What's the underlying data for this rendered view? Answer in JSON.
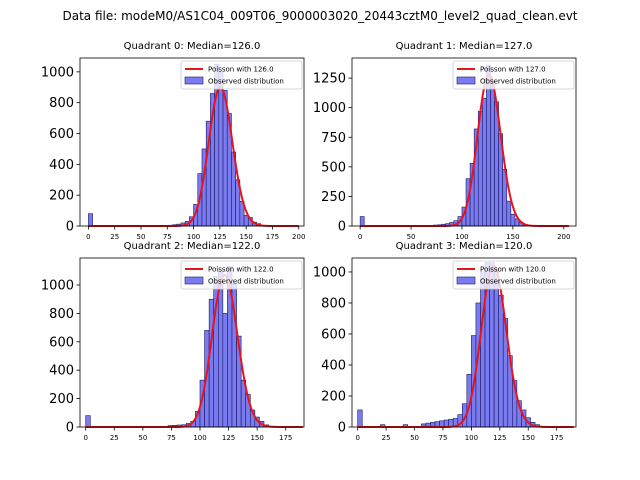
{
  "figure": {
    "suptitle": "Data file: modeM0/AS1C04_009T06_9000003020_20443cztM0_level2_quad_clean.evt"
  },
  "colors": {
    "bar_fill": "#7b7bf0",
    "bar_edge": "#1a1a66",
    "curve": "#e8141b"
  },
  "chart_data": [
    {
      "type": "bar",
      "title": "Quadrant 0: Median=126.0",
      "xlim": [
        -8,
        205
      ],
      "ylim": [
        0,
        1090
      ],
      "xticks": [
        0,
        25,
        50,
        75,
        100,
        125,
        150,
        175,
        200
      ],
      "yticks": [
        0,
        200,
        400,
        600,
        800,
        1000
      ],
      "bin_width": 4,
      "bins": [
        0,
        76,
        80,
        84,
        88,
        92,
        96,
        100,
        104,
        108,
        112,
        116,
        120,
        124,
        128,
        132,
        136,
        140,
        144,
        148,
        152,
        156,
        160,
        164
      ],
      "counts": [
        80,
        5,
        8,
        12,
        20,
        30,
        60,
        140,
        340,
        500,
        680,
        860,
        1050,
        1000,
        880,
        730,
        480,
        300,
        160,
        70,
        55,
        25,
        15,
        5
      ],
      "curve": {
        "type": "poisson",
        "mean": 126.0,
        "peak": 900,
        "x_range": [
          0,
          200
        ]
      },
      "legend": [
        "Poisson with 126.0",
        "Observed distribution"
      ]
    },
    {
      "type": "bar",
      "title": "Quadrant 1: Median=127.0",
      "xlim": [
        -8,
        212
      ],
      "ylim": [
        0,
        1420
      ],
      "xticks": [
        0,
        50,
        100,
        150,
        200
      ],
      "yticks": [
        0,
        250,
        500,
        750,
        1000,
        1250
      ],
      "bin_width": 4,
      "bins": [
        0,
        72,
        76,
        80,
        84,
        88,
        92,
        96,
        100,
        104,
        108,
        112,
        116,
        120,
        124,
        128,
        132,
        136,
        140,
        144,
        148,
        152,
        156,
        160
      ],
      "counts": [
        80,
        8,
        10,
        15,
        20,
        30,
        45,
        80,
        160,
        400,
        530,
        820,
        970,
        1080,
        1360,
        1230,
        1050,
        780,
        480,
        210,
        100,
        60,
        30,
        10
      ],
      "curve": {
        "type": "poisson",
        "mean": 127.0,
        "peak": 1280,
        "x_range": [
          0,
          205
        ]
      },
      "legend": [
        "Poisson with 127.0",
        "Observed distribution"
      ]
    },
    {
      "type": "bar",
      "title": "Quadrant 2: Median=122.0",
      "xlim": [
        -5,
        191
      ],
      "ylim": [
        0,
        1190
      ],
      "xticks": [
        0,
        25,
        50,
        75,
        100,
        125,
        150,
        175
      ],
      "yticks": [
        0,
        200,
        400,
        600,
        800,
        1000
      ],
      "bin_width": 4,
      "bins": [
        0,
        72,
        76,
        80,
        84,
        88,
        92,
        96,
        100,
        104,
        108,
        112,
        116,
        120,
        124,
        128,
        132,
        136,
        140,
        144,
        148,
        152,
        156
      ],
      "counts": [
        80,
        10,
        12,
        14,
        16,
        25,
        40,
        110,
        330,
        680,
        900,
        1060,
        1100,
        800,
        1130,
        1010,
        640,
        330,
        230,
        120,
        70,
        40,
        15
      ],
      "curve": {
        "type": "poisson",
        "mean": 122.0,
        "peak": 1070,
        "x_range": [
          0,
          190
        ]
      },
      "legend": [
        "Poisson with 122.0",
        "Observed distribution"
      ]
    },
    {
      "type": "bar",
      "title": "Quadrant 3: Median=120.0",
      "xlim": [
        -5,
        192
      ],
      "ylim": [
        0,
        1090
      ],
      "xticks": [
        0,
        25,
        50,
        75,
        100,
        125,
        150,
        175
      ],
      "yticks": [
        0,
        200,
        400,
        600,
        800,
        1000
      ],
      "bin_width": 4,
      "bins": [
        0,
        20,
        40,
        56,
        60,
        64,
        68,
        72,
        76,
        80,
        84,
        88,
        92,
        96,
        100,
        104,
        108,
        112,
        116,
        120,
        124,
        128,
        132,
        136,
        140,
        144,
        148,
        152,
        156
      ],
      "counts": [
        110,
        15,
        15,
        20,
        25,
        30,
        35,
        40,
        45,
        50,
        55,
        80,
        150,
        340,
        590,
        800,
        1000,
        1060,
        1060,
        1020,
        850,
        700,
        460,
        300,
        170,
        110,
        60,
        30,
        15
      ],
      "curve": {
        "type": "poisson",
        "mean": 120.0,
        "peak": 1040,
        "x_range": [
          0,
          190
        ]
      },
      "legend": [
        "Poisson with 120.0",
        "Observed distribution"
      ]
    }
  ]
}
